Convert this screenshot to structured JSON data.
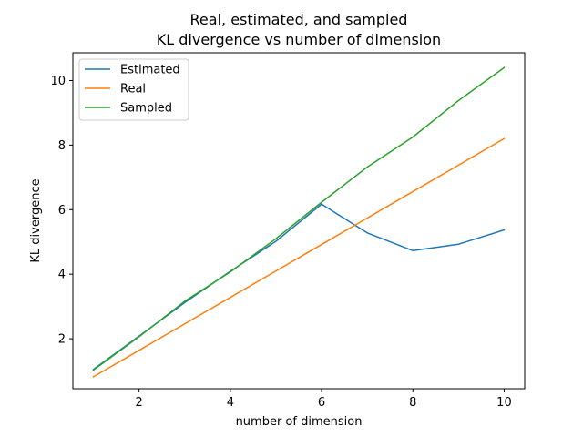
{
  "chart_data": {
    "type": "line",
    "title_line1": "Real, estimated, and sampled",
    "title_line2": "KL divergence vs number of dimension",
    "xlabel": "number of dimension",
    "ylabel": "KL divergence",
    "xlim": [
      0.55,
      10.45
    ],
    "ylim": [
      0.45,
      10.86
    ],
    "x_ticks": [
      2,
      4,
      6,
      8,
      10
    ],
    "y_ticks": [
      2,
      4,
      6,
      8,
      10
    ],
    "x": [
      1,
      2,
      3,
      4,
      5,
      6,
      7,
      8,
      9,
      10
    ],
    "legend_position": "upper-left",
    "grid": false,
    "series": [
      {
        "name": "Estimated",
        "color": "#1f77b4",
        "values": [
          1.05,
          2.08,
          3.12,
          4.09,
          5.02,
          6.17,
          5.28,
          4.73,
          4.93,
          5.37
        ]
      },
      {
        "name": "Real",
        "color": "#ff7f0e",
        "values": [
          0.82,
          1.64,
          2.46,
          3.28,
          4.1,
          4.92,
          5.74,
          6.56,
          7.38,
          8.2
        ]
      },
      {
        "name": "Sampled",
        "color": "#2ca02c",
        "values": [
          1.03,
          2.06,
          3.16,
          4.07,
          5.1,
          6.23,
          7.32,
          8.25,
          9.38,
          10.4
        ]
      }
    ]
  }
}
